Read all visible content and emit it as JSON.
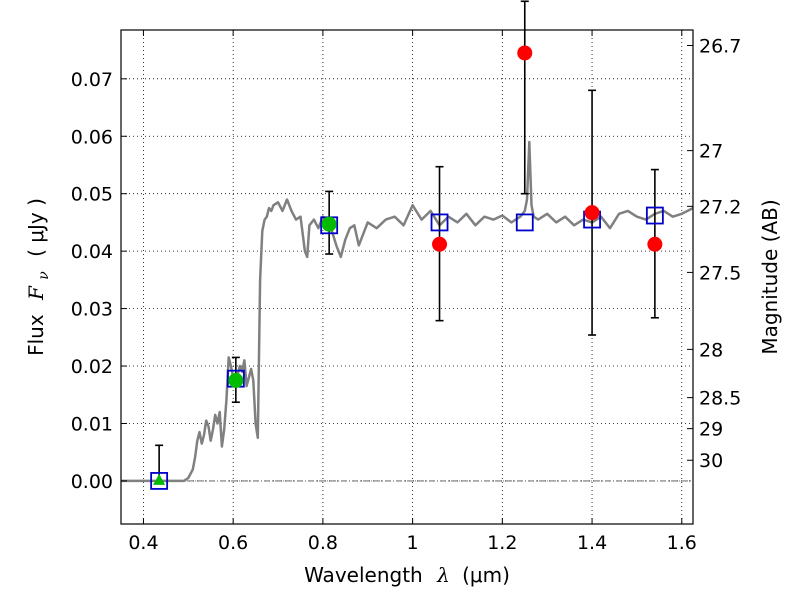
{
  "chart_data": {
    "type": "scatter",
    "xlabel": "Wavelength  λ (μm)",
    "ylabel": "Flux  F_ν  ( μJy )",
    "ylabel_parts": {
      "prefix": "Flux",
      "symbol": "F",
      "subscript": "ν",
      "unit": "( μJy )"
    },
    "xlabel_parts": {
      "prefix": "Wavelength",
      "symbol": "λ",
      "unit": "(μm)"
    },
    "y2label": "Magnitude (AB)",
    "xlim": [
      0.35,
      1.625
    ],
    "ylim": [
      -0.0075,
      0.0785
    ],
    "grid": true,
    "x_ticks": [
      0.4,
      0.6,
      0.8,
      1.0,
      1.2,
      1.4,
      1.6
    ],
    "x_tick_labels": [
      "0.4",
      "0.6",
      "0.8",
      "1",
      "1.2",
      "1.4",
      "1.6"
    ],
    "y_ticks": [
      0.0,
      0.01,
      0.02,
      0.03,
      0.04,
      0.05,
      0.06,
      0.07
    ],
    "y_tick_labels": [
      "0.00",
      "0.01",
      "0.02",
      "0.03",
      "0.04",
      "0.05",
      "0.06",
      "0.07"
    ],
    "mag_ticks": [
      {
        "label": "26.7",
        "flux": 0.0758
      },
      {
        "label": "27",
        "flux": 0.0575
      },
      {
        "label": "27.2",
        "flux": 0.0478
      },
      {
        "label": "27.5",
        "flux": 0.0363
      },
      {
        "label": "28",
        "flux": 0.0229
      },
      {
        "label": "28.5",
        "flux": 0.0145
      },
      {
        "label": "29",
        "flux": 0.0091
      },
      {
        "label": "30",
        "flux": 0.0036
      }
    ],
    "zero_line": 0.0,
    "series": [
      {
        "name": "model spectrum",
        "kind": "line",
        "color": "#808080",
        "x": [
          0.35,
          0.4,
          0.45,
          0.49,
          0.5,
          0.51,
          0.515,
          0.52,
          0.525,
          0.53,
          0.535,
          0.54,
          0.545,
          0.55,
          0.555,
          0.56,
          0.565,
          0.57,
          0.575,
          0.58,
          0.585,
          0.59,
          0.595,
          0.6,
          0.605,
          0.61,
          0.615,
          0.62,
          0.625,
          0.63,
          0.635,
          0.64,
          0.645,
          0.65,
          0.655,
          0.66,
          0.665,
          0.67,
          0.675,
          0.68,
          0.685,
          0.69,
          0.7,
          0.71,
          0.72,
          0.73,
          0.74,
          0.75,
          0.76,
          0.765,
          0.77,
          0.78,
          0.79,
          0.8,
          0.81,
          0.82,
          0.83,
          0.84,
          0.85,
          0.86,
          0.87,
          0.88,
          0.9,
          0.92,
          0.94,
          0.96,
          0.98,
          1.0,
          1.02,
          1.04,
          1.06,
          1.08,
          1.1,
          1.12,
          1.14,
          1.16,
          1.18,
          1.2,
          1.22,
          1.24,
          1.25,
          1.255,
          1.26,
          1.265,
          1.27,
          1.28,
          1.3,
          1.32,
          1.34,
          1.36,
          1.38,
          1.4,
          1.42,
          1.44,
          1.46,
          1.48,
          1.5,
          1.52,
          1.54,
          1.56,
          1.58,
          1.6,
          1.625
        ],
        "y": [
          0.0,
          0.0,
          0.0,
          0.0,
          0.0005,
          0.002,
          0.004,
          0.007,
          0.0085,
          0.0065,
          0.008,
          0.0105,
          0.0095,
          0.007,
          0.009,
          0.0115,
          0.01,
          0.012,
          0.006,
          0.009,
          0.014,
          0.0215,
          0.02,
          0.018,
          0.017,
          0.0185,
          0.02,
          0.019,
          0.021,
          0.0165,
          0.018,
          0.0195,
          0.0175,
          0.01,
          0.0075,
          0.035,
          0.0435,
          0.0455,
          0.046,
          0.0475,
          0.047,
          0.048,
          0.0485,
          0.047,
          0.049,
          0.047,
          0.0455,
          0.046,
          0.04,
          0.039,
          0.0445,
          0.0455,
          0.044,
          0.046,
          0.045,
          0.0435,
          0.041,
          0.039,
          0.042,
          0.044,
          0.0445,
          0.041,
          0.045,
          0.044,
          0.0455,
          0.046,
          0.0445,
          0.048,
          0.0455,
          0.047,
          0.0445,
          0.046,
          0.045,
          0.0465,
          0.0445,
          0.046,
          0.0455,
          0.0462,
          0.045,
          0.046,
          0.047,
          0.049,
          0.059,
          0.048,
          0.046,
          0.0455,
          0.0465,
          0.045,
          0.046,
          0.0445,
          0.0455,
          0.045,
          0.046,
          0.044,
          0.0465,
          0.047,
          0.046,
          0.0455,
          0.0465,
          0.047,
          0.046,
          0.0465,
          0.0475
        ]
      },
      {
        "name": "model photometry",
        "kind": "open-square",
        "color": "#0000cc",
        "x": [
          0.435,
          0.606,
          0.814,
          1.06,
          1.25,
          1.4,
          1.54
        ],
        "y": [
          0.0,
          0.0178,
          0.0445,
          0.045,
          0.045,
          0.0455,
          0.0462
        ]
      },
      {
        "name": "HST optical upper limit",
        "kind": "triangle",
        "color": "#00bb00",
        "x": [
          0.435
        ],
        "y": [
          0.0
        ],
        "yerr_low": [
          0.0
        ],
        "yerr_high": [
          0.0062
        ]
      },
      {
        "name": "HST optical detections",
        "kind": "circle",
        "color": "#00bb00",
        "x": [
          0.606,
          0.814
        ],
        "y": [
          0.0175,
          0.0447
        ],
        "yerr_low": [
          0.0038,
          0.0052
        ],
        "yerr_high": [
          0.004,
          0.0057
        ]
      },
      {
        "name": "HST near-IR photometry",
        "kind": "circle",
        "color": "#ff0000",
        "x": [
          1.06,
          1.25,
          1.4,
          1.54
        ],
        "y": [
          0.0412,
          0.0745,
          0.0467,
          0.0412
        ],
        "yerr_low": [
          0.0133,
          0.0245,
          0.0213,
          0.0128
        ],
        "yerr_high": [
          0.0135,
          0.009,
          0.0213,
          0.013
        ]
      }
    ]
  }
}
